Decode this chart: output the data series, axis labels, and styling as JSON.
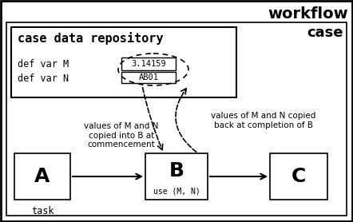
{
  "title": "workflow",
  "case_label": "case",
  "task_label": "task",
  "repo_title": "case data repository",
  "def_var_M": "def var M",
  "def_var_N": "def var N",
  "val_M": "3.14159",
  "val_N": "AB01",
  "use_MN": "use (M, N)",
  "node_A": "A",
  "node_B": "B",
  "node_C": "C",
  "annotation_left": "values of M and N\ncopied into B at\ncommencement",
  "annotation_right": "values of M and N copied\nback at completion of B",
  "bg_color": "#ffffff",
  "fig_width": 4.42,
  "fig_height": 2.78,
  "dpi": 100
}
